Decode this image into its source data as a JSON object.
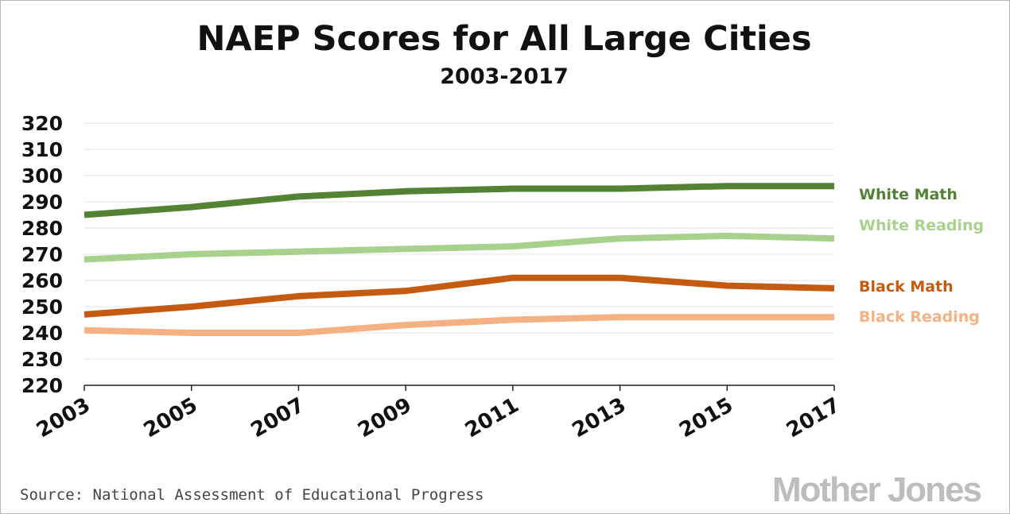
{
  "chart_data": {
    "type": "line",
    "title": "NAEP Scores for All Large Cities",
    "subtitle": "2003-2017",
    "xlabel": "",
    "ylabel": "",
    "x": [
      "2003",
      "2005",
      "2007",
      "2009",
      "2011",
      "2013",
      "2015",
      "2017"
    ],
    "ylim": [
      220,
      320
    ],
    "yticks": [
      "320",
      "310",
      "300",
      "290",
      "280",
      "270",
      "260",
      "250",
      "240",
      "230",
      "220"
    ],
    "grid": true,
    "legend_placement": "right",
    "series": [
      {
        "name": "White Math",
        "color": "#548235",
        "values": [
          285,
          288,
          292,
          294,
          295,
          295,
          296,
          296
        ]
      },
      {
        "name": "White Reading",
        "color": "#a9d18e",
        "values": [
          268,
          270,
          271,
          272,
          273,
          276,
          277,
          276
        ]
      },
      {
        "name": "Black Math",
        "color": "#c55a11",
        "values": [
          247,
          250,
          254,
          256,
          261,
          261,
          258,
          257
        ]
      },
      {
        "name": "Black Reading",
        "color": "#f4b183",
        "values": [
          241,
          240,
          240,
          243,
          245,
          246,
          246,
          246
        ]
      }
    ]
  },
  "footer": {
    "source": "Source: National Assessment of Educational Progress",
    "brand": "Mother Jones"
  },
  "colors": {
    "gridline": "#e3e3e3",
    "axis": "#222222",
    "text": "#111111"
  }
}
